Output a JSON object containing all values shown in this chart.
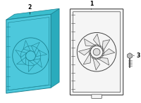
{
  "background_color": "#ffffff",
  "fig_width": 2.0,
  "fig_height": 1.47,
  "dpi": 100,
  "blue_fill": "#4dc8dc",
  "blue_edge": "#1a8090",
  "white_fill": "#f5f5f5",
  "grey_edge": "#444444",
  "label_fontsize": 5.5,
  "label1": "1",
  "label2": "2",
  "label3": "3"
}
